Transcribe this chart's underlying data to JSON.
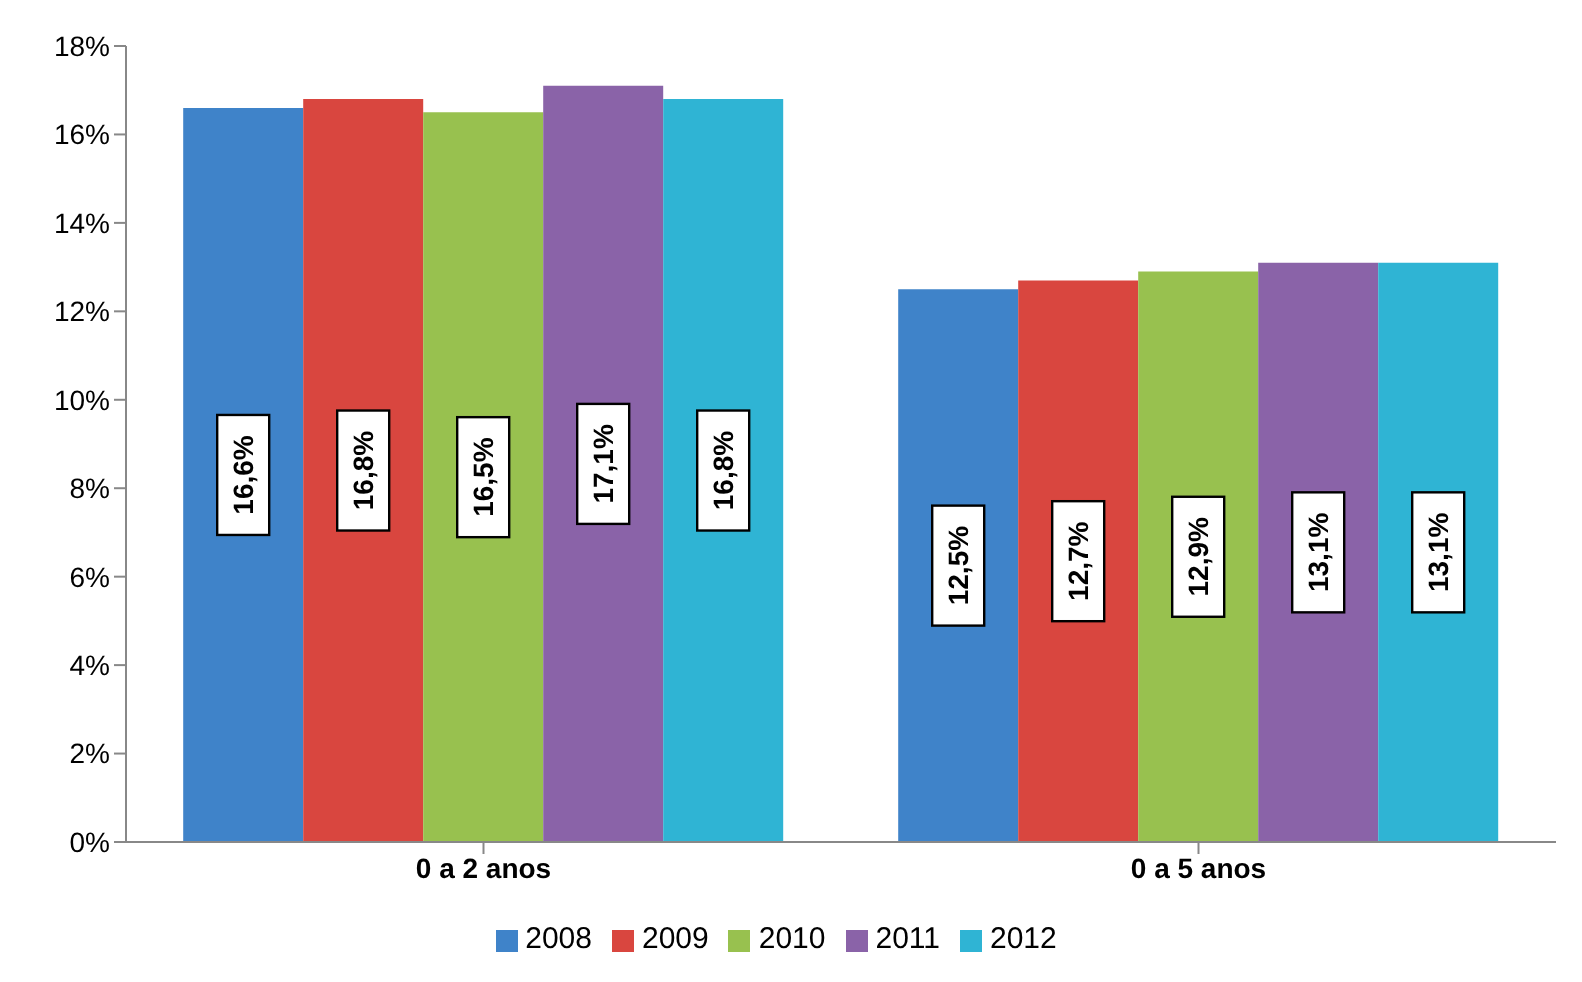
{
  "chart_data": {
    "type": "bar",
    "categories": [
      "0 a 2 anos",
      "0 a 5 anos"
    ],
    "series": [
      {
        "name": "2008",
        "color": "#3f83c9",
        "values": [
          16.6,
          12.5
        ],
        "value_labels": [
          "16,6%",
          "12,5%"
        ]
      },
      {
        "name": "2009",
        "color": "#d9463f",
        "values": [
          16.8,
          12.7
        ],
        "value_labels": [
          "16,8%",
          "12,7%"
        ]
      },
      {
        "name": "2010",
        "color": "#98c14f",
        "values": [
          16.5,
          12.9
        ],
        "value_labels": [
          "16,5%",
          "12,9%"
        ]
      },
      {
        "name": "2011",
        "color": "#8a63a8",
        "values": [
          17.1,
          13.1
        ],
        "value_labels": [
          "17,1%",
          "13,1%"
        ]
      },
      {
        "name": "2012",
        "color": "#2fb4d4",
        "values": [
          16.8,
          13.1
        ],
        "value_labels": [
          "16,8%",
          "13,1%"
        ]
      }
    ],
    "ylim": [
      0,
      18
    ],
    "yticks": [
      {
        "value": 0,
        "label": "0%"
      },
      {
        "value": 2,
        "label": "2%"
      },
      {
        "value": 4,
        "label": "4%"
      },
      {
        "value": 6,
        "label": "6%"
      },
      {
        "value": 8,
        "label": "8%"
      },
      {
        "value": 10,
        "label": "10%"
      },
      {
        "value": 12,
        "label": "12%"
      },
      {
        "value": 14,
        "label": "14%"
      },
      {
        "value": 16,
        "label": "16%"
      },
      {
        "value": 18,
        "label": "18%"
      }
    ],
    "legend": "bottom"
  }
}
